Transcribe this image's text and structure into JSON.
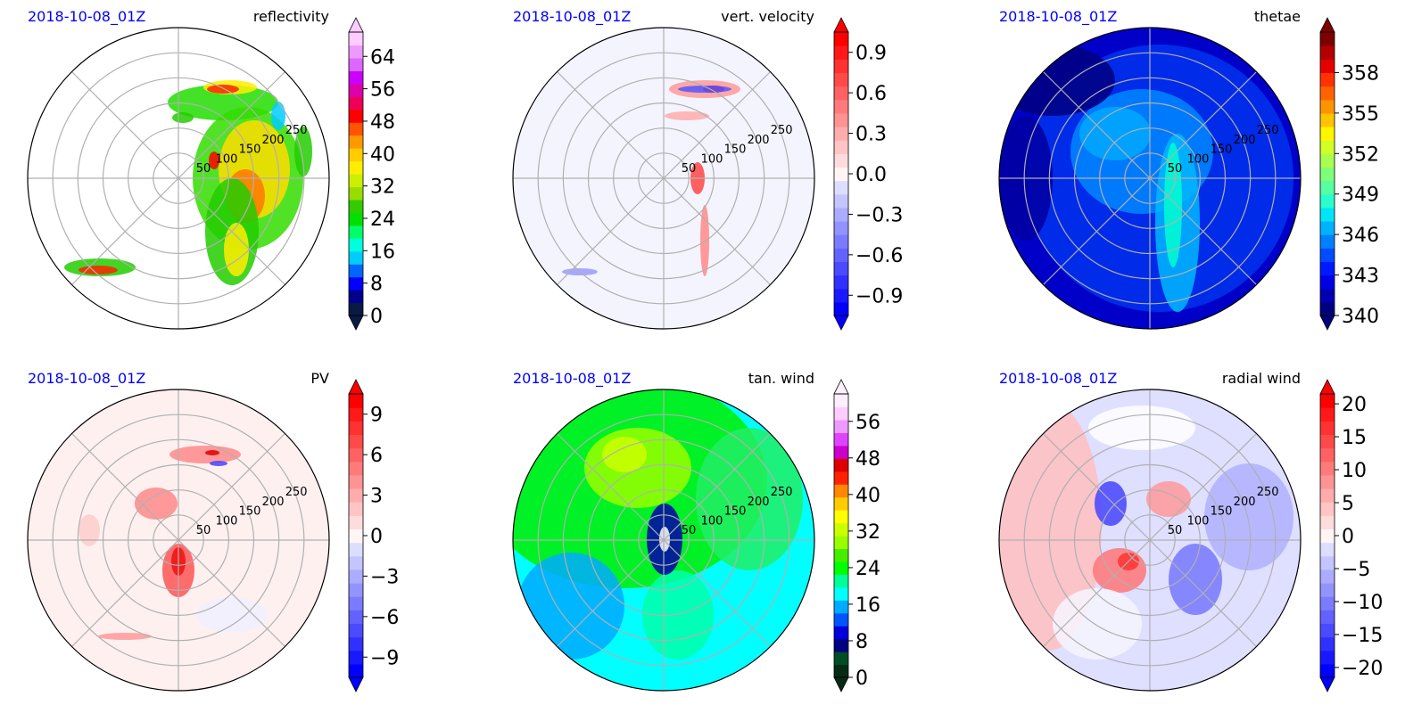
{
  "chart_data": [
    {
      "type": "polar-contourf",
      "date_label": "2018-10-08_01Z",
      "title": "reflectivity",
      "r_ticks": [
        50,
        100,
        150,
        200,
        250
      ],
      "colorbar": {
        "ticks": [
          "0",
          "8",
          "16",
          "24",
          "32",
          "40",
          "48",
          "56",
          "64"
        ],
        "min": 0,
        "max": 70,
        "extend": "both",
        "colormap": "radar-reflectivity"
      }
    },
    {
      "type": "polar-contourf",
      "date_label": "2018-10-08_01Z",
      "title": "vert. velocity",
      "r_ticks": [
        50,
        100,
        150,
        200,
        250
      ],
      "colorbar": {
        "ticks": [
          "−0.9",
          "−0.6",
          "−0.3",
          "0.0",
          "0.3",
          "0.6",
          "0.9"
        ],
        "min": -1.05,
        "max": 1.05,
        "extend": "both",
        "colormap": "bwr"
      }
    },
    {
      "type": "polar-contourf",
      "date_label": "2018-10-08_01Z",
      "title": "thetae",
      "r_ticks": [
        50,
        100,
        150,
        200,
        250
      ],
      "colorbar": {
        "ticks": [
          "340",
          "343",
          "346",
          "349",
          "352",
          "355",
          "358"
        ],
        "min": 340,
        "max": 361,
        "extend": "both",
        "colormap": "jet"
      }
    },
    {
      "type": "polar-contourf",
      "date_label": "2018-10-08_01Z",
      "title": "PV",
      "r_ticks": [
        50,
        100,
        150,
        200,
        250
      ],
      "colorbar": {
        "ticks": [
          "−9",
          "−6",
          "−3",
          "0",
          "3",
          "6",
          "9"
        ],
        "min": -10.5,
        "max": 10.5,
        "extend": "both",
        "colormap": "bwr"
      }
    },
    {
      "type": "polar-contourf",
      "date_label": "2018-10-08_01Z",
      "title": "tan. wind",
      "r_ticks": [
        50,
        100,
        150,
        200,
        250
      ],
      "colorbar": {
        "ticks": [
          "0",
          "8",
          "16",
          "24",
          "32",
          "40",
          "48",
          "56"
        ],
        "min": 0,
        "max": 62,
        "extend": "both",
        "colormap": "wind-speed"
      }
    },
    {
      "type": "polar-contourf",
      "date_label": "2018-10-08_01Z",
      "title": "radial wind",
      "r_ticks": [
        50,
        100,
        150,
        200,
        250
      ],
      "colorbar": {
        "ticks": [
          "−20",
          "−15",
          "−10",
          "−5",
          "0",
          "5",
          "10",
          "15",
          "20"
        ],
        "min": -21.5,
        "max": 21.5,
        "extend": "both",
        "colormap": "bwr"
      }
    }
  ]
}
